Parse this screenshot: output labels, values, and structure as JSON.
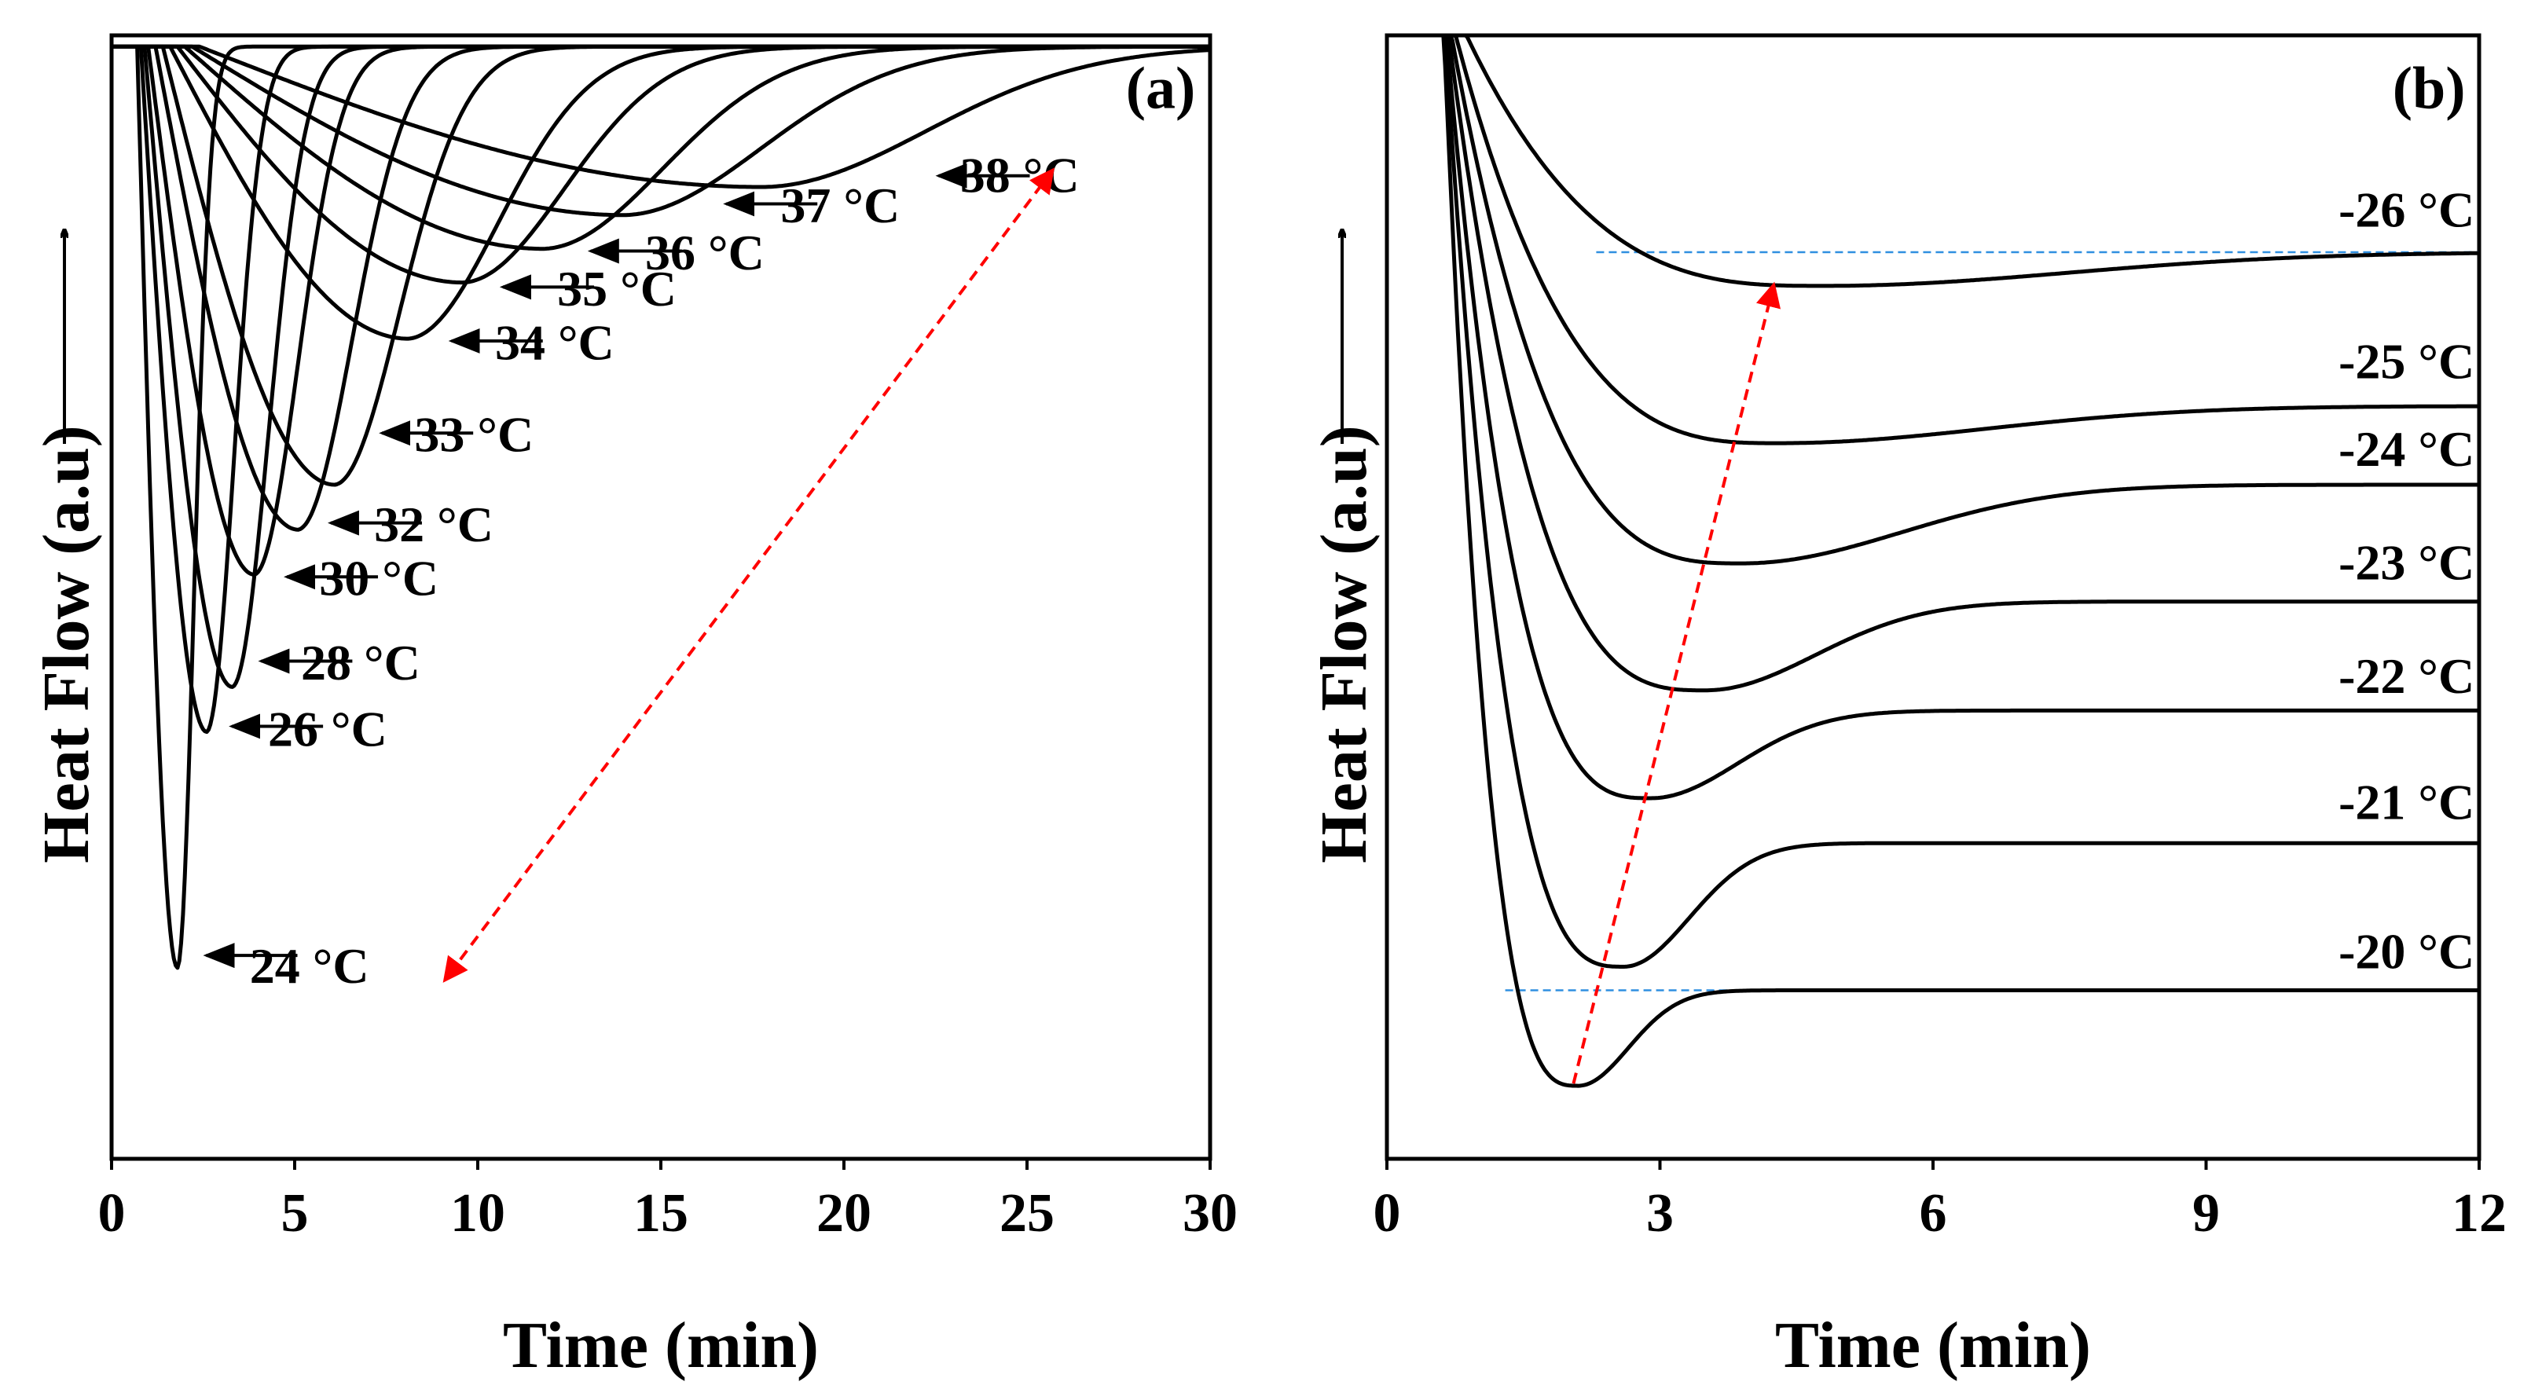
{
  "chart_data": [
    {
      "type": "line",
      "panel": "(a)",
      "xlabel": "Time (min)",
      "ylabel": "Heat Flow (a.u)",
      "xlim": [
        0,
        30
      ],
      "ylim": [
        0,
        1
      ],
      "xticks": [
        0,
        5,
        10,
        15,
        20,
        25,
        30
      ],
      "yticks": [],
      "grid": false,
      "curve_points": 4,
      "series": [
        {
          "name": "24 °C",
          "onset": 0.7,
          "tmin": 1.8,
          "depth": 0.82,
          "k_rise": 0.55,
          "sigma_l": 0.45
        },
        {
          "name": "26 °C",
          "onset": 0.8,
          "tmin": 2.6,
          "depth": 0.61,
          "k_rise": 0.45,
          "sigma_l": 0.75
        },
        {
          "name": "28 °C",
          "onset": 0.9,
          "tmin": 3.3,
          "depth": 0.57,
          "k_rise": 0.35,
          "sigma_l": 1.0
        },
        {
          "name": "30 °C",
          "onset": 1.0,
          "tmin": 3.9,
          "depth": 0.47,
          "k_rise": 0.3,
          "sigma_l": 1.2
        },
        {
          "name": "32 °C",
          "onset": 1.2,
          "tmin": 5.1,
          "depth": 0.43,
          "k_rise": 0.26,
          "sigma_l": 1.5
        },
        {
          "name": "33 °C",
          "onset": 1.4,
          "tmin": 6.1,
          "depth": 0.39,
          "k_rise": 0.22,
          "sigma_l": 1.8
        },
        {
          "name": "34 °C",
          "onset": 1.6,
          "tmin": 8.1,
          "depth": 0.26,
          "k_rise": 0.17,
          "sigma_l": 2.5
        },
        {
          "name": "35 °C",
          "onset": 1.8,
          "tmin": 9.6,
          "depth": 0.21,
          "k_rise": 0.14,
          "sigma_l": 2.8
        },
        {
          "name": "36 °C",
          "onset": 2.0,
          "tmin": 11.8,
          "depth": 0.18,
          "k_rise": 0.12,
          "sigma_l": 3.3
        },
        {
          "name": "37 °C",
          "onset": 2.2,
          "tmin": 14.0,
          "depth": 0.15,
          "k_rise": 0.11,
          "sigma_l": 3.8
        },
        {
          "name": "38 °C",
          "onset": 2.4,
          "tmin": 17.8,
          "depth": 0.125,
          "k_rise": 0.09,
          "sigma_l": 4.5
        }
      ],
      "labels": [
        {
          "text": "38 °C",
          "arrow_tip": [
            22.5,
            0.875
          ],
          "text_x": 24.8,
          "text_y": 0.876
        },
        {
          "text": "37 °C",
          "arrow_tip": [
            16.7,
            0.85
          ],
          "text_x": 19.9,
          "text_y": 0.849
        },
        {
          "text": "36 °C",
          "arrow_tip": [
            13.0,
            0.808
          ],
          "text_x": 16.2,
          "text_y": 0.807
        },
        {
          "text": "35 °C",
          "arrow_tip": [
            10.6,
            0.776
          ],
          "text_x": 13.8,
          "text_y": 0.775
        },
        {
          "text": "34 °C",
          "arrow_tip": [
            9.2,
            0.728
          ],
          "text_x": 12.1,
          "text_y": 0.727
        },
        {
          "text": "33 °C",
          "arrow_tip": [
            7.3,
            0.646
          ],
          "text_x": 9.9,
          "text_y": 0.645
        },
        {
          "text": "32 °C",
          "arrow_tip": [
            5.9,
            0.566
          ],
          "text_x": 8.8,
          "text_y": 0.565
        },
        {
          "text": "30 °C",
          "arrow_tip": [
            4.7,
            0.518
          ],
          "text_x": 7.3,
          "text_y": 0.517
        },
        {
          "text": "28 °C",
          "arrow_tip": [
            4.0,
            0.443
          ],
          "text_x": 6.8,
          "text_y": 0.442
        },
        {
          "text": "26 °C",
          "arrow_tip": [
            3.2,
            0.385
          ],
          "text_x": 5.9,
          "text_y": 0.383
        },
        {
          "text": "24 °C",
          "arrow_tip": [
            2.5,
            0.181
          ],
          "text_x": 5.4,
          "text_y": 0.172
        }
      ],
      "panel_label_pos": [
        29.6,
        0.955
      ],
      "arrow": {
        "from": [
          25.7,
          0.88
        ],
        "to": [
          9.1,
          0.159
        ],
        "color": "#ff0000",
        "double_headed": true
      }
    },
    {
      "type": "line",
      "panel": "(b)",
      "xlabel": "Time (min)",
      "ylabel": "Heat Flow (a.u)",
      "xlim": [
        0,
        12
      ],
      "ylim": [
        0,
        1
      ],
      "xticks": [
        0,
        3,
        6,
        9,
        12
      ],
      "yticks": [],
      "grid": false,
      "curve_points": 4,
      "series": [
        {
          "name": "-26 °C",
          "plateau": 0.807,
          "tmin": 4.8,
          "depth": 0.03,
          "sigma_r": 2.7
        },
        {
          "name": "-25 °C",
          "plateau": 0.67,
          "tmin": 4.3,
          "depth": 0.033,
          "sigma_r": 2.3
        },
        {
          "name": "-24 °C",
          "plateau": 0.6,
          "tmin": 3.9,
          "depth": 0.07,
          "sigma_r": 1.75
        },
        {
          "name": "-23 °C",
          "plateau": 0.496,
          "tmin": 3.5,
          "depth": 0.079,
          "sigma_r": 1.2
        },
        {
          "name": "-22 °C",
          "plateau": 0.399,
          "tmin": 2.9,
          "depth": 0.078,
          "sigma_r": 0.95
        },
        {
          "name": "-21 °C",
          "plateau": 0.281,
          "tmin": 2.6,
          "depth": 0.11,
          "sigma_r": 0.72
        },
        {
          "name": "-20 °C",
          "plateau": 0.15,
          "tmin": 2.1,
          "depth": 0.085,
          "sigma_r": 0.55
        }
      ],
      "labels": [
        {
          "text": "-26 °C",
          "text_x": 11.95,
          "text_y": 0.845
        },
        {
          "text": "-25 °C",
          "text_x": 11.95,
          "text_y": 0.71
        },
        {
          "text": "-24 °C",
          "text_x": 11.95,
          "text_y": 0.632
        },
        {
          "text": "-23 °C",
          "text_x": 11.95,
          "text_y": 0.531
        },
        {
          "text": "-22 °C",
          "text_x": 11.95,
          "text_y": 0.43
        },
        {
          "text": "-21 °C",
          "text_x": 11.95,
          "text_y": 0.318
        },
        {
          "text": "-20 °C",
          "text_x": 11.95,
          "text_y": 0.185
        }
      ],
      "panel_label_pos": [
        11.85,
        0.955
      ],
      "reference_lines": [
        {
          "from": [
            2.3,
            0.807
          ],
          "to": [
            12,
            0.807
          ],
          "color": "#2f8fe0",
          "dashed": true
        },
        {
          "from": [
            1.3,
            0.15
          ],
          "to": [
            4.4,
            0.15
          ],
          "color": "#2f8fe0",
          "dashed": true
        }
      ],
      "arrow": {
        "from": [
          2.05,
          0.067
        ],
        "to": [
          4.25,
          0.778
        ],
        "color": "#ff0000",
        "double_headed": false
      }
    }
  ]
}
